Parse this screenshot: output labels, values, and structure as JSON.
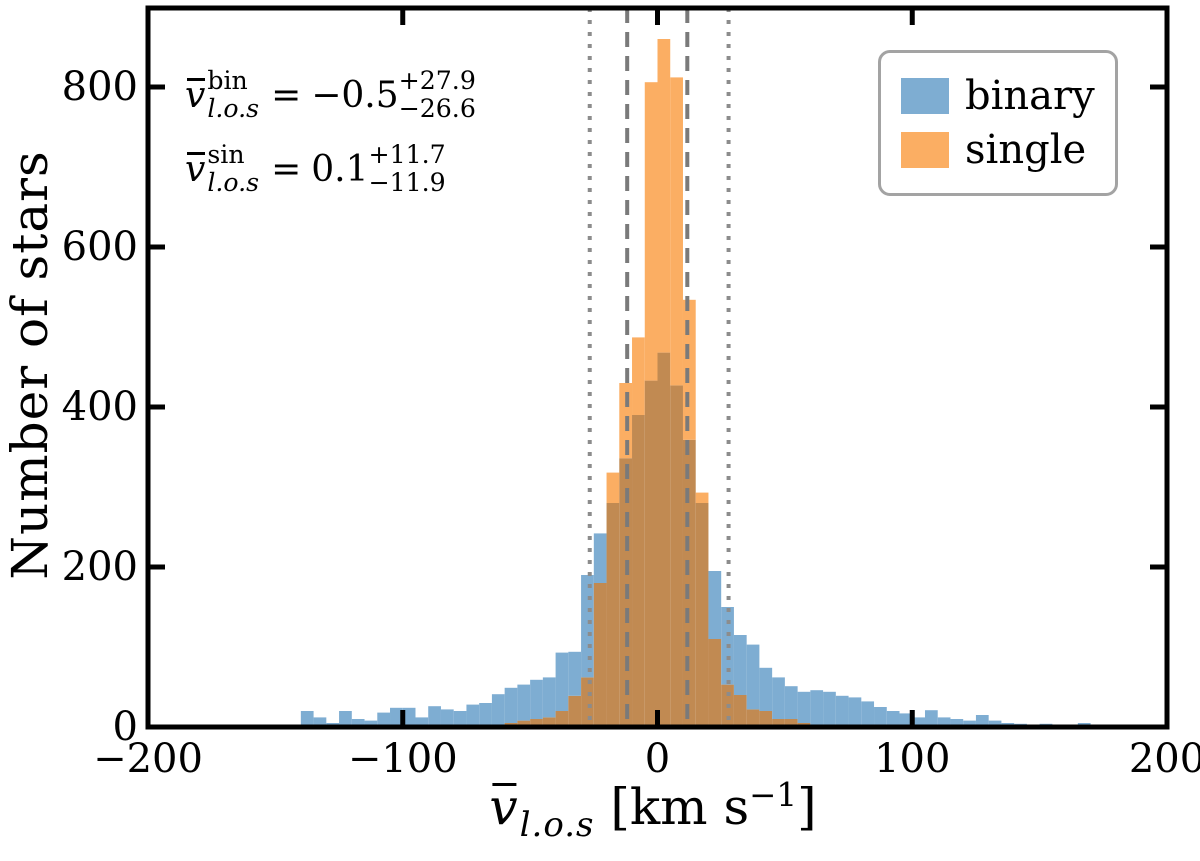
{
  "chart_data": {
    "type": "bar",
    "subtype": "overlapping-histograms",
    "title": "",
    "ylabel": "Number of stars",
    "xlabel_math": {
      "var": "v",
      "sub": "l.o.s",
      "unit_open": "[km s",
      "unit_exp": "−1",
      "unit_close": "]"
    },
    "xlim": [
      -200,
      200
    ],
    "ylim": [
      0,
      890
    ],
    "bin_start": -200,
    "bin_width": 5,
    "x_ticks": [
      -200,
      -100,
      0,
      100,
      200
    ],
    "x_tick_labels": [
      "−200",
      "−100",
      "0",
      "100",
      "200"
    ],
    "y_ticks": [
      0,
      200,
      400,
      600,
      800
    ],
    "y_tick_labels": [
      "0",
      "200",
      "400",
      "600",
      "800"
    ],
    "grid": false,
    "legend_position": "upper right",
    "series": [
      {
        "name": "binary",
        "color": "#7EADD2",
        "values": [
          0,
          2,
          1,
          0,
          2,
          1,
          1,
          0,
          2,
          2,
          3,
          3,
          20,
          12,
          5,
          20,
          10,
          8,
          18,
          24,
          24,
          12,
          26,
          22,
          20,
          28,
          30,
          41,
          49,
          53,
          59,
          62,
          93,
          94,
          190,
          242,
          280,
          336,
          390,
          433,
          468,
          427,
          359,
          280,
          195,
          150,
          115,
          103,
          74,
          62,
          51,
          44,
          46,
          44,
          39,
          37,
          32,
          25,
          20,
          17,
          12,
          21,
          12,
          10,
          8,
          15,
          8,
          5,
          4,
          3,
          4,
          3,
          2,
          5,
          2,
          1,
          1,
          0,
          0,
          0
        ]
      },
      {
        "name": "single",
        "color": "#FBAE63",
        "values": [
          0,
          0,
          0,
          0,
          0,
          0,
          0,
          0,
          0,
          0,
          0,
          0,
          0,
          0,
          0,
          0,
          0,
          0,
          0,
          0,
          0,
          0,
          0,
          0,
          0,
          0,
          0,
          3,
          5,
          8,
          10,
          12,
          20,
          39,
          62,
          180,
          318,
          430,
          487,
          806,
          860,
          812,
          534,
          293,
          110,
          53,
          40,
          22,
          20,
          10,
          10,
          5,
          3,
          0,
          0,
          0,
          0,
          0,
          0,
          0,
          0,
          0,
          0,
          0,
          0,
          0,
          0,
          0,
          0,
          0,
          0,
          0,
          0,
          0,
          0,
          0,
          0,
          0,
          0,
          0
        ]
      }
    ],
    "overlap_color": "#C18A52",
    "vlines": [
      {
        "x": -26.6,
        "style": "dotted",
        "color": "#8C8C8C"
      },
      {
        "x": -11.9,
        "style": "dashed",
        "color": "#7A7A7A"
      },
      {
        "x": 11.7,
        "style": "dashed",
        "color": "#7A7A7A"
      },
      {
        "x": 27.9,
        "style": "dotted",
        "color": "#8C8C8C"
      }
    ]
  },
  "annotations": {
    "line1": {
      "var": "v",
      "sup": "bin",
      "sub": "l.o.s",
      "eq": "=",
      "value": "−0.5",
      "plus": "+27.9",
      "minus": "−26.6"
    },
    "line2": {
      "var": "v",
      "sup": "sin",
      "sub": "l.o.s",
      "eq": "=",
      "value": "0.1",
      "plus": "+11.7",
      "minus": "−11.9"
    }
  },
  "legend": {
    "items": [
      {
        "label": "binary",
        "color": "#7EADD2"
      },
      {
        "label": "single",
        "color": "#FBAE63"
      }
    ]
  },
  "frame_color": "#000000",
  "background_color": "#ffffff"
}
